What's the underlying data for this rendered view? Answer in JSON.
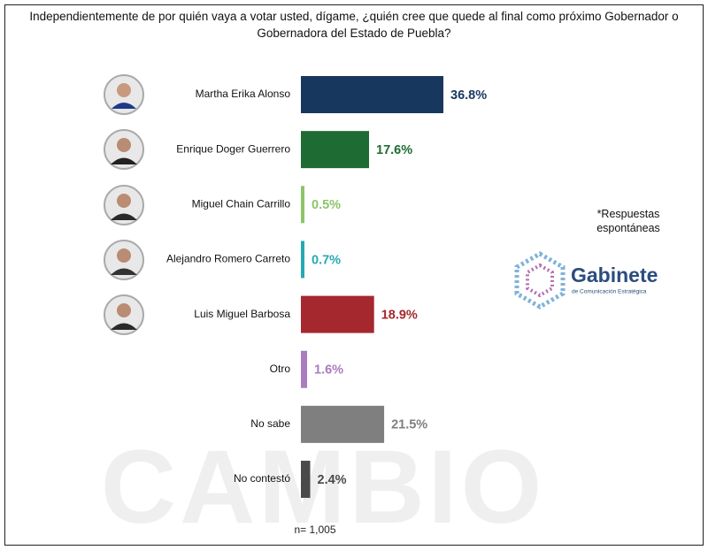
{
  "chart_data": {
    "type": "bar",
    "orientation": "horizontal",
    "title": "Independientemente de por quién vaya a votar usted, dígame, ¿quién cree que quede al final como próximo Gobernador o Gobernadora del Estado de Puebla?",
    "categories": [
      "Martha Erika Alonso",
      "Enrique Doger Guerrero",
      "Miguel Chain Carrillo",
      "Alejandro Romero Carreto",
      "Luis Miguel Barbosa",
      "Otro",
      "No sabe",
      "No contestó"
    ],
    "values": [
      36.8,
      17.6,
      0.5,
      0.7,
      18.9,
      1.6,
      21.5,
      2.4
    ],
    "value_labels": [
      "36.8%",
      "17.6%",
      "0.5%",
      "0.7%",
      "18.9%",
      "1.6%",
      "21.5%",
      "2.4%"
    ],
    "colors": [
      "#17375e",
      "#1e6b34",
      "#8cc56a",
      "#27a9b5",
      "#a4282e",
      "#a97cc0",
      "#7f7f7f",
      "#4a4a4a"
    ],
    "note": "*Respuestas espontáneas",
    "sample": "n= 1,005",
    "logo_name": "Gabinete",
    "logo_tagline": "de Comunicación Estratégica",
    "watermark": "CAMBIO"
  }
}
